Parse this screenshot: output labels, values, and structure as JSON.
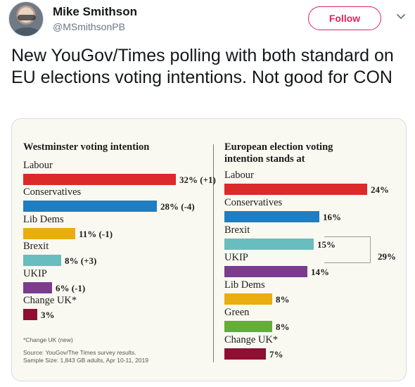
{
  "tweet": {
    "author_name": "Mike Smithson",
    "handle": "@MSmithsonPB",
    "follow_label": "Follow",
    "text": "New YouGov/Times polling with both standard on EU elections voting intentions. Not good for CON"
  },
  "chart_data": [
    {
      "type": "bar",
      "title": "Westminster voting intention",
      "categories": [
        "Labour",
        "Conservatives",
        "Lib Dems",
        "Brexit",
        "UKIP",
        "Change UK*"
      ],
      "values": [
        32,
        28,
        11,
        8,
        6,
        3
      ],
      "value_labels": [
        "32% (+1)",
        "28% (-4)",
        "11% (-1)",
        "8% (+3)",
        "6% (-1)",
        "3%"
      ],
      "colors": [
        "#dc2a2a",
        "#1f7ec1",
        "#e8ad0f",
        "#68bdbf",
        "#7b3b8f",
        "#8e0f31"
      ]
    },
    {
      "type": "bar",
      "title": "European election voting intention stands at",
      "categories": [
        "Labour",
        "Conservatives",
        "Brexit",
        "UKIP",
        "Lib Dems",
        "Green",
        "Change UK*"
      ],
      "values": [
        24,
        16,
        15,
        14,
        8,
        8,
        7
      ],
      "value_labels": [
        "24%",
        "16%",
        "15%",
        "14%",
        "8%",
        "8%",
        "7%"
      ],
      "colors": [
        "#dc2a2a",
        "#1f7ec1",
        "#68bdbf",
        "#7b3b8f",
        "#e8ad0f",
        "#63ae36",
        "#8e0f31"
      ],
      "annotation": {
        "label": "29%",
        "spans": [
          "Brexit",
          "UKIP"
        ]
      }
    }
  ],
  "notes": {
    "footnote": "*Change UK (new)",
    "source": "Source: YouGov/The Times survey results.",
    "sample": "Sample Size: 1,843 GB adults, Apr 10-11, 2019"
  }
}
